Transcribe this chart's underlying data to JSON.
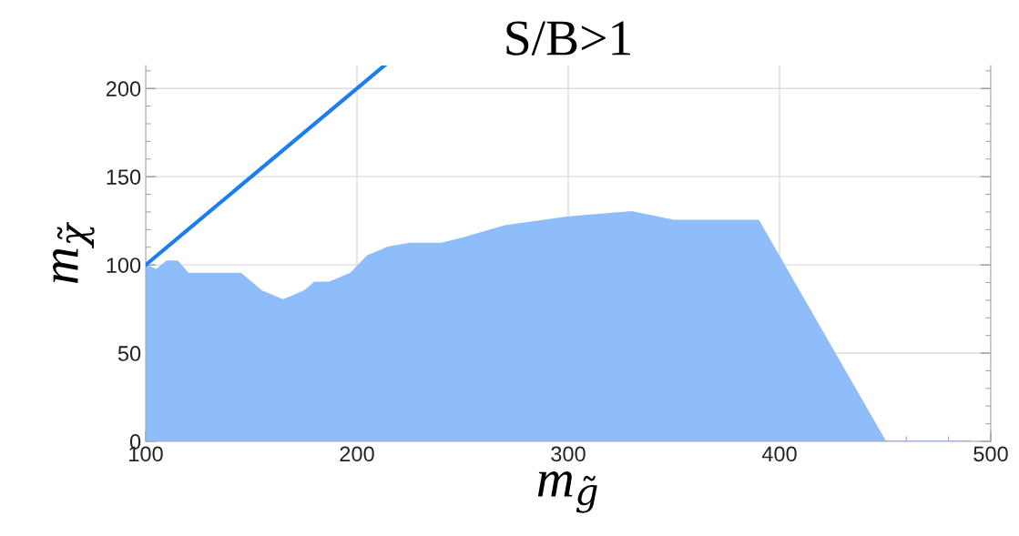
{
  "chart_data": {
    "type": "area",
    "title": "S/B>1",
    "xlabel": "m$_{g̃}$",
    "ylabel": "m$_{χ̃}$",
    "xlim": [
      100,
      500
    ],
    "ylim": [
      0,
      213
    ],
    "xticks": [
      100,
      200,
      300,
      400,
      500
    ],
    "yticks": [
      0,
      50,
      100,
      150,
      200
    ],
    "grid": true,
    "series": [
      {
        "color": "#8fbdfc",
        "x": [
          100,
          105,
          110,
          115,
          120,
          145,
          155,
          165,
          175,
          180,
          187,
          197,
          205,
          215,
          225,
          240,
          250,
          270,
          300,
          330,
          350,
          390,
          450,
          490
        ],
        "values": [
          100,
          97,
          102,
          102,
          95,
          95,
          85,
          80,
          85,
          90,
          90,
          95,
          105,
          110,
          112,
          112,
          115,
          122,
          127,
          130,
          125,
          125,
          0,
          0
        ]
      },
      {
        "type": "line",
        "color": "#1a7ef0",
        "x": [
          100,
          213
        ],
        "values": [
          100,
          213
        ]
      }
    ]
  }
}
